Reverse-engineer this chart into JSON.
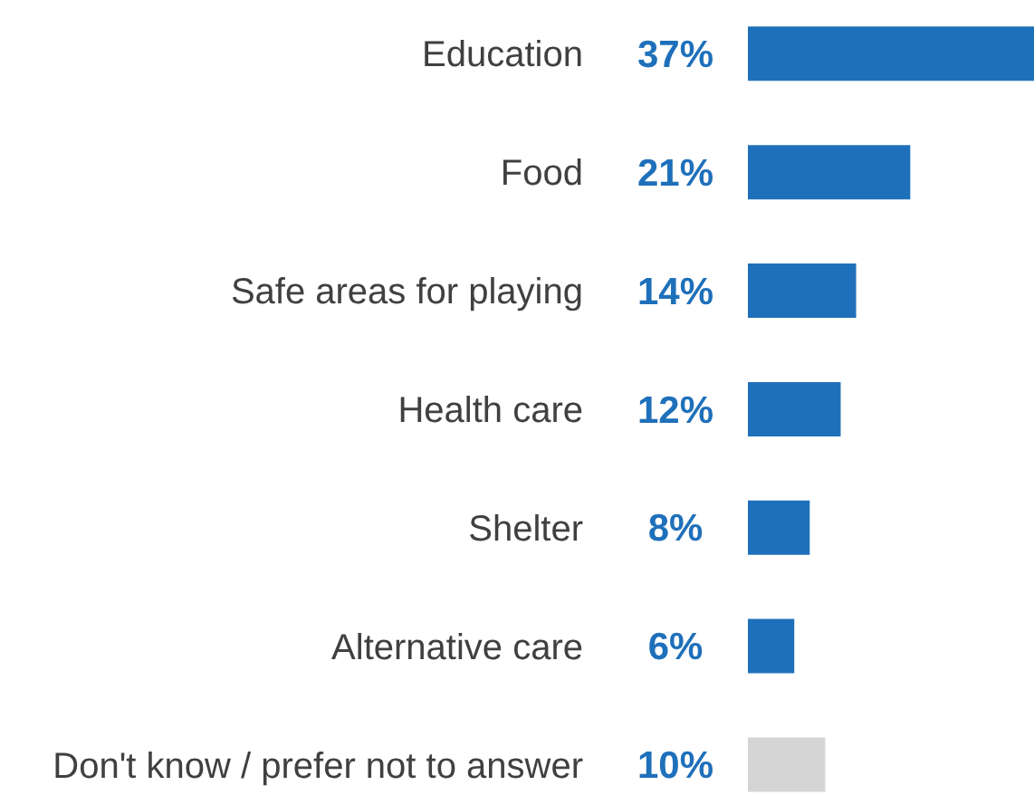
{
  "chart_data": {
    "type": "bar",
    "orientation": "horizontal",
    "categories": [
      "Education",
      "Food",
      "Safe areas for playing",
      "Health care",
      "Shelter",
      "Alternative care",
      "Don't know / prefer not to answer"
    ],
    "values": [
      37,
      21,
      14,
      12,
      8,
      6,
      10
    ],
    "colors": [
      "#1f70ba",
      "#1f70ba",
      "#1f70ba",
      "#1f70ba",
      "#1f70ba",
      "#1f70ba",
      "#d4d4d4"
    ],
    "value_labels": [
      "37%",
      "21%",
      "14%",
      "12%",
      "8%",
      "6%",
      "10%"
    ]
  }
}
